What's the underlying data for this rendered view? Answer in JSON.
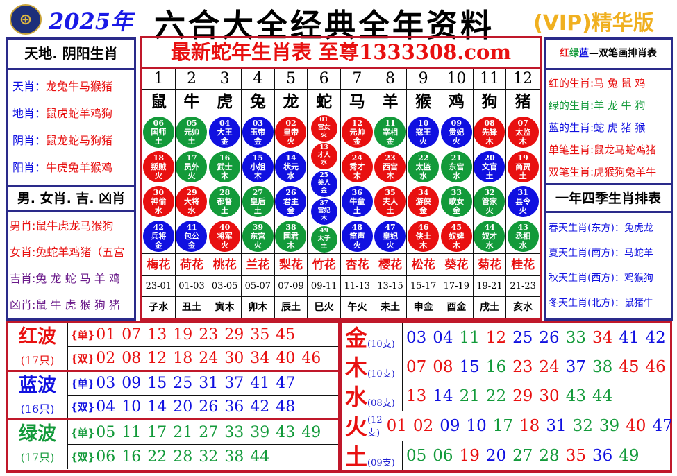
{
  "header": {
    "logo": "HK",
    "year": "2025年",
    "title": "六合大全经典全年资料",
    "vip": "(VIP)精华版"
  },
  "colors": {
    "red": "#e81010",
    "blue": "#1010e0",
    "green": "#139a3a",
    "purple": "#6a1a8a",
    "border": "#c0182a",
    "panel": "#2a2a8a"
  },
  "left": {
    "title1": "天地. 阴阳生肖",
    "items1": [
      {
        "k": "天肖：",
        "v": "龙兔牛马猴猪"
      },
      {
        "k": "地肖：",
        "v": "鼠虎蛇羊鸡狗"
      },
      {
        "k": "阴肖：",
        "v": "鼠龙蛇马狗猪"
      },
      {
        "k": "阳肖：",
        "v": "牛虎兔羊猴鸡"
      }
    ],
    "title2": "男. 女肖. 吉. 凶肖",
    "items2": [
      {
        "k": "男肖:",
        "v": "鼠牛虎龙马猴狗",
        "c": "red"
      },
      {
        "k": "女肖:",
        "v": "兔蛇羊鸡猪（五宫",
        "c": "red"
      },
      {
        "k": "吉肖:",
        "v": "兔 龙 蛇 马 羊 鸡",
        "c": "purple"
      },
      {
        "k": "凶肖:",
        "v": "鼠 牛 虎 猴 狗 猪",
        "c": "purple"
      }
    ]
  },
  "middle": {
    "title": "最新蛇年生肖表",
    "title2": "至尊",
    "site": "1333308.com",
    "numbers": [
      "1",
      "2",
      "3",
      "4",
      "5",
      "6",
      "7",
      "8",
      "9",
      "10",
      "11",
      "12"
    ],
    "zodiac": [
      "鼠",
      "牛",
      "虎",
      "兔",
      "龙",
      "蛇",
      "马",
      "羊",
      "猴",
      "鸡",
      "狗",
      "猪"
    ],
    "balls": [
      [
        {
          "n": "06",
          "t": "国师",
          "e": "土"
        },
        {
          "n": "18",
          "t": "叛贼",
          "e": "火"
        },
        {
          "n": "30",
          "t": "神偷",
          "e": "水"
        },
        {
          "n": "42",
          "t": "兵将",
          "e": "金"
        }
      ],
      [
        {
          "n": "05",
          "t": "元帅",
          "e": "土"
        },
        {
          "n": "17",
          "t": "员外",
          "e": "火"
        },
        {
          "n": "29",
          "t": "大将",
          "e": "水"
        },
        {
          "n": "41",
          "t": "包公",
          "e": "金"
        }
      ],
      [
        {
          "n": "04",
          "t": "大王",
          "e": "金"
        },
        {
          "n": "16",
          "t": "武士",
          "e": "木"
        },
        {
          "n": "28",
          "t": "都督",
          "e": "土"
        },
        {
          "n": "40",
          "t": "将军",
          "e": "火"
        }
      ],
      [
        {
          "n": "03",
          "t": "玉帝",
          "e": "金"
        },
        {
          "n": "15",
          "t": "小姐",
          "e": "木"
        },
        {
          "n": "27",
          "t": "皇后",
          "e": "土"
        },
        {
          "n": "39",
          "t": "东宫",
          "e": "火"
        }
      ],
      [
        {
          "n": "02",
          "t": "皇帝",
          "e": "火"
        },
        {
          "n": "14",
          "t": "状元",
          "e": "水"
        },
        {
          "n": "26",
          "t": "君主",
          "e": "金"
        },
        {
          "n": "38",
          "t": "国君",
          "e": "木"
        }
      ],
      [
        {
          "n": "01",
          "t": "宫女",
          "e": "火"
        },
        {
          "n": "13",
          "t": "才人",
          "e": "水"
        },
        {
          "n": "25",
          "t": "美人",
          "e": "金"
        },
        {
          "n": "37",
          "t": "宫妃",
          "e": "木"
        },
        {
          "n": "49",
          "t": "太子",
          "e": "土"
        }
      ],
      [
        {
          "n": "12",
          "t": "元帅",
          "e": "金"
        },
        {
          "n": "24",
          "t": "秀才",
          "e": "木"
        },
        {
          "n": "36",
          "t": "牛童",
          "e": "土"
        },
        {
          "n": "48",
          "t": "笛声",
          "e": "火"
        }
      ],
      [
        {
          "n": "11",
          "t": "宰相",
          "e": "金"
        },
        {
          "n": "23",
          "t": "西宫",
          "e": "木"
        },
        {
          "n": "35",
          "t": "夫人",
          "e": "土"
        },
        {
          "n": "47",
          "t": "皇妃",
          "e": "火"
        }
      ],
      [
        {
          "n": "10",
          "t": "寇王",
          "e": "火"
        },
        {
          "n": "22",
          "t": "太监",
          "e": "水"
        },
        {
          "n": "34",
          "t": "游侠",
          "e": "金"
        },
        {
          "n": "46",
          "t": "侠士",
          "e": "木"
        }
      ],
      [
        {
          "n": "09",
          "t": "贵妃",
          "e": "火"
        },
        {
          "n": "21",
          "t": "东宫",
          "e": "水"
        },
        {
          "n": "33",
          "t": "歌女",
          "e": "金"
        },
        {
          "n": "45",
          "t": "奴婢",
          "e": "木"
        }
      ],
      [
        {
          "n": "08",
          "t": "先锋",
          "e": "木"
        },
        {
          "n": "20",
          "t": "文官",
          "e": "土"
        },
        {
          "n": "32",
          "t": "管家",
          "e": "火"
        },
        {
          "n": "44",
          "t": "奴才",
          "e": "水"
        }
      ],
      [
        {
          "n": "07",
          "t": "太监",
          "e": "木"
        },
        {
          "n": "19",
          "t": "商贾",
          "e": "土"
        },
        {
          "n": "31",
          "t": "县令",
          "e": "火"
        },
        {
          "n": "43",
          "t": "丞相",
          "e": "水"
        }
      ]
    ],
    "flowers": [
      "梅花",
      "荷花",
      "桃花",
      "兰花",
      "梨花",
      "竹花",
      "杏花",
      "樱花",
      "松花",
      "葵花",
      "菊花",
      "桂花"
    ],
    "hours": [
      "23-01",
      "01-03",
      "03-05",
      "05-07",
      "07-09",
      "09-11",
      "11-13",
      "13-15",
      "15-17",
      "17-19",
      "19-21",
      "21-23"
    ],
    "branches": [
      "子水",
      "丑土",
      "寅木",
      "卯木",
      "辰土",
      "巳火",
      "午火",
      "未土",
      "申金",
      "酉金",
      "戌土",
      "亥水"
    ]
  },
  "right": {
    "title1": [
      {
        "t": "红",
        "c": "red"
      },
      {
        "t": "绿",
        "c": "green"
      },
      {
        "t": "蓝",
        "c": "blue"
      },
      {
        "t": "—双笔画排肖表",
        "c": "black"
      }
    ],
    "items1": [
      {
        "k": "红的生肖:",
        "v": "马 兔 鼠 鸡",
        "c": "red"
      },
      {
        "k": "绿的生肖:",
        "v": "羊 龙 牛 狗",
        "c": "green"
      },
      {
        "k": "蓝的生肖:",
        "v": "蛇 虎 猪 猴",
        "c": "blue"
      },
      {
        "k": "单笔生肖:",
        "v": "鼠龙马蛇鸡猪",
        "c": "red"
      },
      {
        "k": "双笔生肖:",
        "v": "虎猴狗兔羊牛",
        "c": "red"
      }
    ],
    "title2": "一年四季生肖排表",
    "items2": [
      {
        "k": "春天生肖(东方)：",
        "v": "兔虎龙"
      },
      {
        "k": "夏天生肖(南方)：",
        "v": "马蛇羊"
      },
      {
        "k": "秋天生肖(西方)：",
        "v": "鸡猴狗"
      },
      {
        "k": "冬天生肖(北方)：",
        "v": "鼠猪牛"
      }
    ]
  },
  "waves": [
    {
      "name": "红波",
      "count": "(17只)",
      "c": "red",
      "odd_label": "{单}",
      "even_label": "{双}",
      "odd": [
        "01",
        "07",
        "13",
        "19",
        "23",
        "29",
        "35",
        "45"
      ],
      "even": [
        "02",
        "08",
        "12",
        "18",
        "24",
        "30",
        "34",
        "40",
        "46"
      ]
    },
    {
      "name": "蓝波",
      "count": "(16只)",
      "c": "blue",
      "odd_label": "{单}",
      "even_label": "{双}",
      "odd": [
        "03",
        "09",
        "15",
        "25",
        "31",
        "37",
        "41",
        "47"
      ],
      "even": [
        "04",
        "10",
        "14",
        "20",
        "26",
        "36",
        "42",
        "48"
      ]
    },
    {
      "name": "绿波",
      "count": "(17只)",
      "c": "green",
      "odd_label": "{单}",
      "even_label": "{双}",
      "odd": [
        "05",
        "11",
        "17",
        "21",
        "27",
        "33",
        "39",
        "43",
        "49"
      ],
      "even": [
        "06",
        "16",
        "22",
        "28",
        "32",
        "38",
        "44"
      ]
    }
  ],
  "elements": [
    {
      "name": "金",
      "count": "(10支)",
      "nums": [
        "03",
        "04",
        "11",
        "12",
        "25",
        "26",
        "33",
        "34",
        "41",
        "42"
      ]
    },
    {
      "name": "木",
      "count": "(10支)",
      "nums": [
        "07",
        "08",
        "15",
        "16",
        "23",
        "24",
        "37",
        "38",
        "45",
        "46"
      ]
    },
    {
      "name": "水",
      "count": "(08支)",
      "nums": [
        "13",
        "14",
        "21",
        "22",
        "29",
        "30",
        "43",
        "44"
      ]
    },
    {
      "name": "火",
      "count": "(12支)",
      "nums": [
        "01",
        "02",
        "09",
        "10",
        "17",
        "18",
        "31",
        "32",
        "39",
        "40",
        "47",
        "48"
      ]
    },
    {
      "name": "土",
      "count": "(09支)",
      "nums": [
        "05",
        "06",
        "19",
        "20",
        "27",
        "28",
        "35",
        "36",
        "49"
      ]
    }
  ]
}
